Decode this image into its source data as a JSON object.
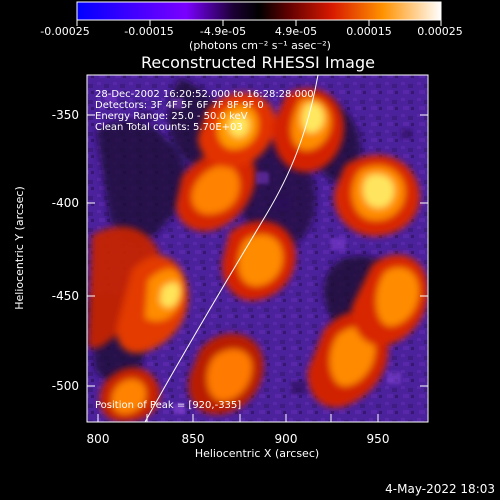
{
  "colorbar": {
    "ticks": [
      "-0.00025",
      "-0.00015",
      "-4.9e-05",
      "4.9e-05",
      "0.00015",
      "0.00025"
    ],
    "unit_label": "(photons cm⁻² s⁻¹ asec⁻²)"
  },
  "title": "Reconstructed RHESSI Image",
  "overlay": {
    "line1": "28-Dec-2002 16:20:52.000 to 16:28:28.000",
    "line2": "Detectors: 3F 4F 5F 6F 7F 8F 9F 0",
    "line3": "Energy Range: 25.0 - 50.0 keV",
    "line4": "Clean     Total counts: 5.70E+03",
    "peak": "Position of Peak = [920,-335]"
  },
  "axes": {
    "xlabel": "Heliocentric X (arcsec)",
    "ylabel": "Heliocentric Y (arcsec)",
    "xticks": [
      "800",
      "850",
      "900",
      "950"
    ],
    "yticks": [
      "-350",
      "-400",
      "-450",
      "-500"
    ]
  },
  "timestamp": "4-May-2022 18:03",
  "colors": {
    "background": "#000000",
    "text": "#ffffff",
    "purple": "#5a2aa0",
    "red": "#e03000",
    "orange": "#ff8c00",
    "yellow": "#ffe45a"
  }
}
